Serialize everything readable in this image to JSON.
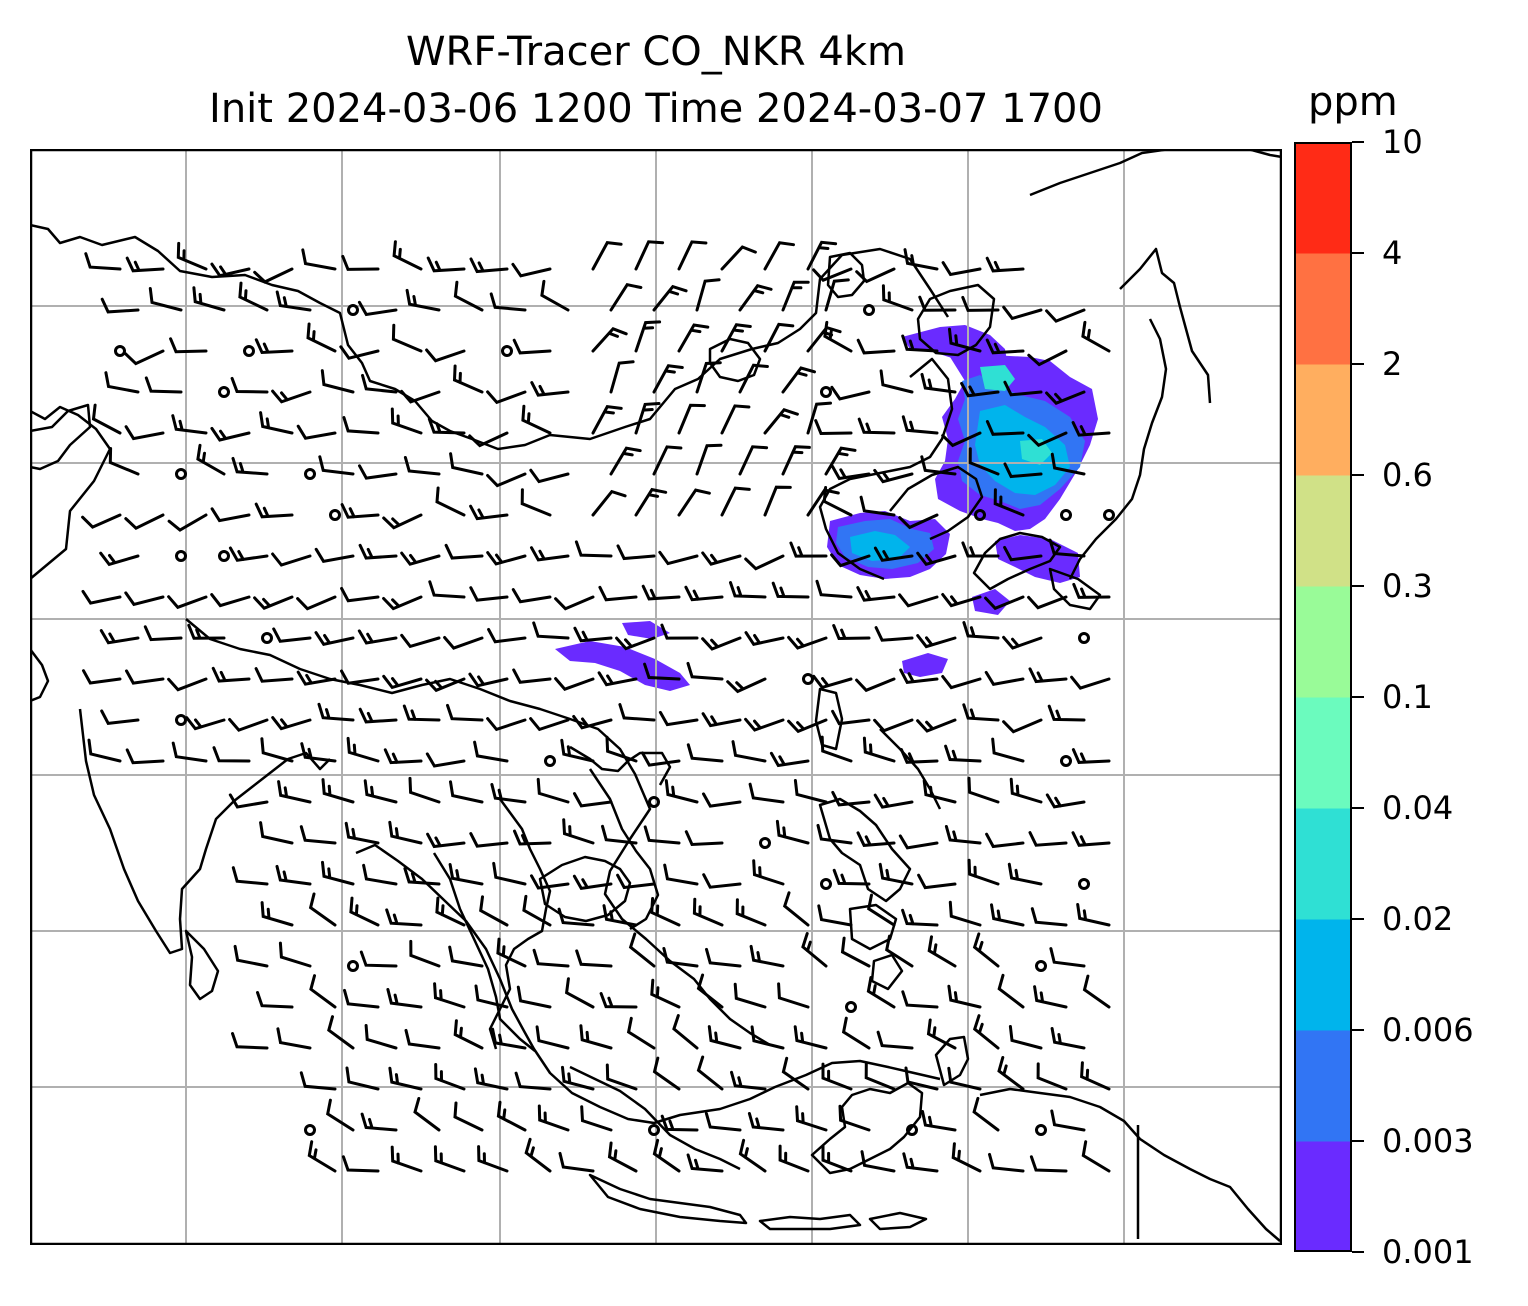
{
  "title": {
    "line1": "WRF-Tracer CO_NKR 4km",
    "line2": "Init 2024-03-06 1200 Time 2024-03-07 1700"
  },
  "colorbar": {
    "unit": "ppm",
    "levels": [
      "0.001",
      "0.003",
      "0.006",
      "0.02",
      "0.04",
      "0.1",
      "0.3",
      "0.6",
      "2",
      "4",
      "10"
    ],
    "colors": [
      "#6a2bff",
      "#3175f4",
      "#00b4ec",
      "#2fe0d4",
      "#6bfbbe",
      "#99fb98",
      "#d0e187",
      "#ffae5f",
      "#ff7142",
      "#ff2b16"
    ]
  },
  "map": {
    "gridlines": "on",
    "coastlines": "black",
    "wind_barbs": "black"
  }
}
